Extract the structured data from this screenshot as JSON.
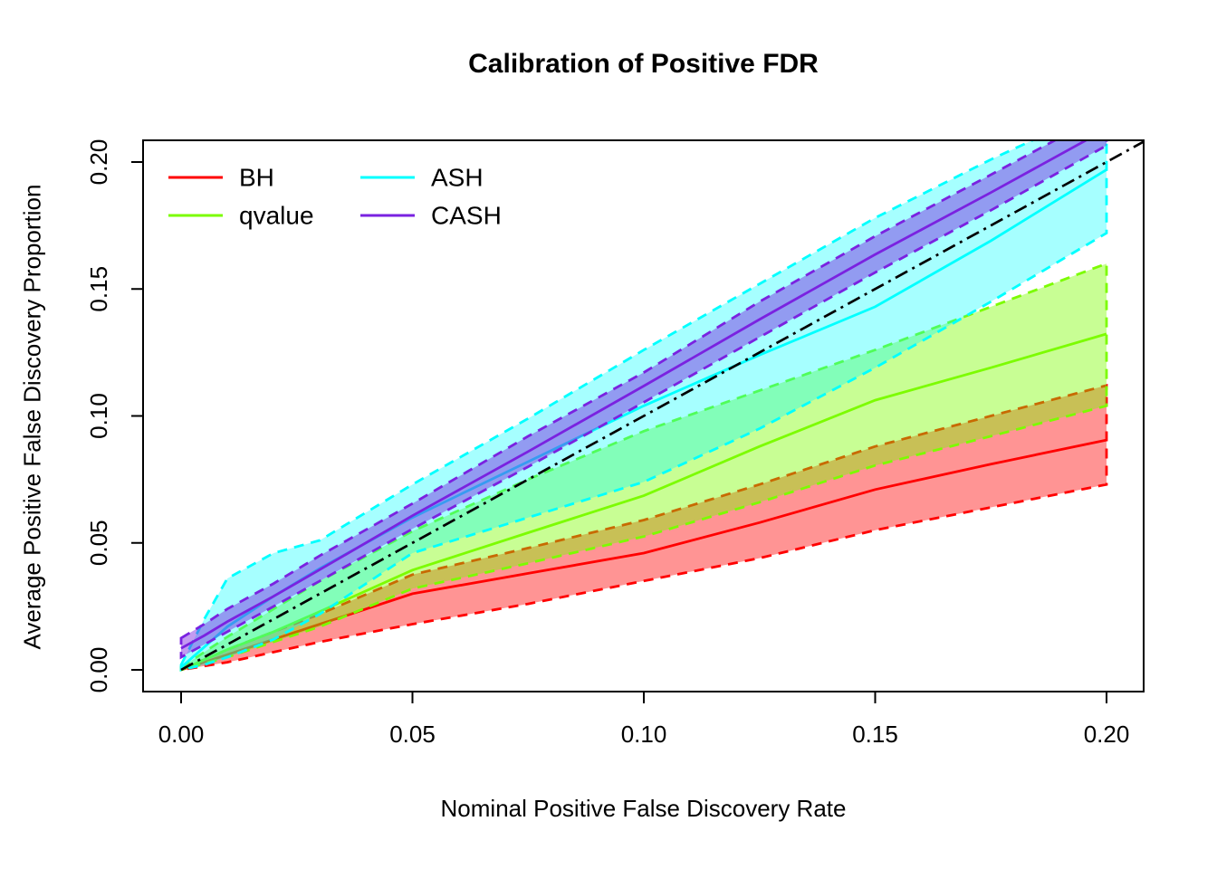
{
  "chart_data": {
    "type": "line",
    "title": "Calibration of Positive FDR",
    "xlabel": "Nominal Positive False Discovery Rate",
    "ylabel": "Average Positive False Discovery Proportion",
    "xlim": [
      0,
      0.2
    ],
    "ylim": [
      0,
      0.2
    ],
    "x_ticks": [
      "0.00",
      "0.05",
      "0.10",
      "0.15",
      "0.20"
    ],
    "x_tick_values": [
      0,
      0.05,
      0.1,
      0.15,
      0.2
    ],
    "y_ticks": [
      "0.00",
      "0.05",
      "0.10",
      "0.15",
      "0.20"
    ],
    "y_tick_values": [
      0,
      0.05,
      0.1,
      0.15,
      0.2
    ],
    "grid": false,
    "legend_position": "top-left",
    "reference_line": {
      "name": "identity-diagonal",
      "style": "dash-dot",
      "color": "#000000",
      "from": [
        0,
        0
      ],
      "to": [
        0.209,
        0.209
      ]
    },
    "x": [
      0,
      0.005,
      0.01,
      0.02,
      0.03,
      0.05,
      0.075,
      0.1,
      0.125,
      0.15,
      0.175,
      0.2
    ],
    "series": [
      {
        "name": "BH",
        "color": "#FF0000",
        "fill_opacity": 0.42,
        "band_style": "dashed",
        "lower": [
          0,
          0.0015,
          0.003,
          0.007,
          0.011,
          0.018,
          0.026,
          0.035,
          0.044,
          0.055,
          0.064,
          0.073
        ],
        "center": [
          0,
          0.003,
          0.006,
          0.012,
          0.018,
          0.03,
          0.038,
          0.046,
          0.058,
          0.071,
          0.081,
          0.0905
        ],
        "upper": [
          0.001,
          0.004,
          0.008,
          0.015,
          0.022,
          0.0375,
          0.048,
          0.059,
          0.073,
          0.088,
          0.1,
          0.112
        ]
      },
      {
        "name": "qvalue",
        "color": "#7CFC00",
        "fill_opacity": 0.42,
        "band_style": "dashed",
        "lower": [
          0,
          0.0025,
          0.005,
          0.011,
          0.017,
          0.032,
          0.042,
          0.0525,
          0.066,
          0.0805,
          0.092,
          0.104
        ],
        "center": [
          0,
          0.004,
          0.008,
          0.015,
          0.023,
          0.0393,
          0.054,
          0.0686,
          0.088,
          0.1062,
          0.119,
          0.1323
        ],
        "upper": [
          0.001,
          0.007,
          0.013,
          0.024,
          0.035,
          0.0546,
          0.075,
          0.094,
          0.11,
          0.126,
          0.143,
          0.16
        ]
      },
      {
        "name": "ASH",
        "color": "#00FFFF",
        "fill_opacity": 0.35,
        "band_style": "dashed",
        "lower": [
          0,
          0.002,
          0.005,
          0.012,
          0.022,
          0.046,
          0.06,
          0.074,
          0.095,
          0.119,
          0.145,
          0.172
        ],
        "center": [
          0.001,
          0.009,
          0.017,
          0.029,
          0.04,
          0.06,
          0.082,
          0.104,
          0.124,
          0.143,
          0.169,
          0.197
        ],
        "upper": [
          0.002,
          0.02,
          0.036,
          0.046,
          0.051,
          0.073,
          0.099,
          0.126,
          0.152,
          0.178,
          0.201,
          0.222
        ]
      },
      {
        "name": "CASH",
        "color": "#7A22E0",
        "fill_opacity": 0.45,
        "band_style": "dashed",
        "lower": [
          0.005,
          0.01,
          0.015,
          0.025,
          0.035,
          0.0555,
          0.08,
          0.1054,
          0.131,
          0.1565,
          0.181,
          0.2065
        ],
        "center": [
          0.0085,
          0.0135,
          0.019,
          0.029,
          0.0395,
          0.0607,
          0.086,
          0.1118,
          0.138,
          0.1636,
          0.188,
          0.213
        ],
        "upper": [
          0.0125,
          0.018,
          0.024,
          0.034,
          0.045,
          0.0655,
          0.092,
          0.1171,
          0.145,
          0.1708,
          0.195,
          0.2195
        ]
      }
    ],
    "legend": {
      "entries": [
        {
          "label": "BH",
          "color": "#FF0000"
        },
        {
          "label": "qvalue",
          "color": "#7CFC00"
        },
        {
          "label": "ASH",
          "color": "#00FFFF"
        },
        {
          "label": "CASH",
          "color": "#7A22E0"
        }
      ]
    }
  }
}
